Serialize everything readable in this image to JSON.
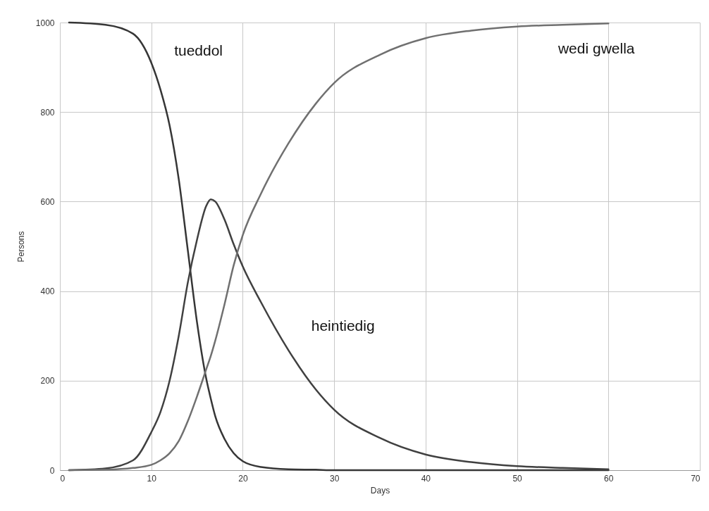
{
  "chart_data": {
    "type": "line",
    "xlabel": "Days",
    "ylabel": "Persons",
    "x": [
      1,
      5,
      8,
      10,
      11,
      12,
      13,
      14,
      15,
      16,
      16.5,
      17,
      18,
      19,
      20,
      22,
      25,
      28,
      30,
      35,
      40,
      45,
      50,
      55,
      60
    ],
    "series": [
      {
        "name": "tueddol",
        "color": "#363636",
        "values": [
          1000,
          995,
          975,
          910,
          850,
          770,
          650,
          490,
          330,
          205,
          160,
          120,
          70,
          38,
          20,
          7,
          2,
          1,
          0,
          0,
          0,
          0,
          0,
          0,
          0
        ]
      },
      {
        "name": "heintiedig",
        "color": "#404040",
        "values": [
          0,
          4,
          22,
          85,
          130,
          200,
          300,
          420,
          515,
          590,
          605,
          600,
          560,
          505,
          455,
          375,
          268,
          180,
          135,
          72,
          35,
          18,
          9,
          5,
          2
        ]
      },
      {
        "name": "wedi gwella",
        "color": "#707070",
        "values": [
          0,
          1,
          5,
          12,
          22,
          38,
          65,
          110,
          165,
          225,
          255,
          290,
          370,
          457,
          525,
          618,
          730,
          819,
          865,
          928,
          965,
          982,
          991,
          995,
          998
        ]
      }
    ],
    "xlim": [
      0,
      70
    ],
    "xticks": [
      0,
      10,
      20,
      30,
      40,
      50,
      60,
      70
    ],
    "ylim": [
      0,
      1000
    ],
    "yticks": [
      0,
      200,
      400,
      600,
      800,
      1000
    ],
    "grid": true,
    "legend": false,
    "line_style": "solid",
    "marker": "none"
  }
}
